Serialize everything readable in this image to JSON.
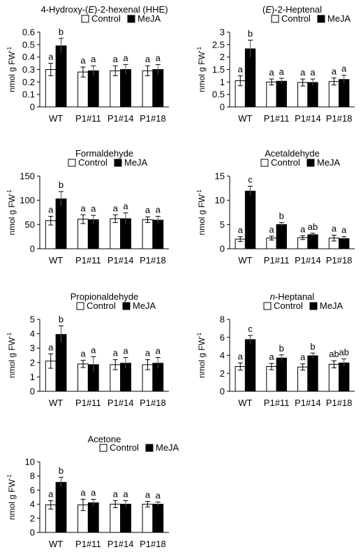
{
  "figure": {
    "ylabel": "nmol g FW",
    "ylabel_sup": "-1",
    "legend": [
      "Control",
      "MeJA"
    ],
    "colors": {
      "control": "#ffffff",
      "meja": "#000000",
      "axis": "#000000"
    }
  },
  "chart_data": [
    {
      "type": "bar",
      "title": "4-Hydroxy-(E)-2-hexenal (HHE)",
      "title_parts": [
        {
          "t": "4-Hydroxy-(",
          "i": false
        },
        {
          "t": "E",
          "i": true
        },
        {
          "t": ")-2-hexenal (HHE)",
          "i": false
        }
      ],
      "categories": [
        "WT",
        "P1#11",
        "P1#14",
        "P1#18"
      ],
      "ylabel": "nmol g FW-1",
      "ylim": [
        0,
        0.6
      ],
      "yticks": [
        "0",
        "0.1",
        "0.2",
        "0.3",
        "0.4",
        "0.5",
        "0.6"
      ],
      "series": [
        {
          "name": "Control",
          "values": [
            0.3,
            0.28,
            0.29,
            0.29
          ],
          "errors": [
            0.05,
            0.04,
            0.04,
            0.04
          ],
          "labels": [
            "a",
            "a",
            "a",
            "a"
          ]
        },
        {
          "name": "MeJA",
          "values": [
            0.49,
            0.29,
            0.3,
            0.3
          ],
          "errors": [
            0.06,
            0.04,
            0.04,
            0.04
          ],
          "labels": [
            "b",
            "a",
            "a",
            "a"
          ]
        }
      ]
    },
    {
      "type": "bar",
      "title": "(E)-2-Heptenal",
      "title_parts": [
        {
          "t": "(",
          "i": false
        },
        {
          "t": "E",
          "i": true
        },
        {
          "t": ")-2-Heptenal",
          "i": false
        }
      ],
      "categories": [
        "WT",
        "P1#11",
        "P1#14",
        "P1#18"
      ],
      "ylabel": "nmol g FW-1",
      "ylim": [
        0,
        3
      ],
      "yticks": [
        "0",
        "0.5",
        "1",
        "1.5",
        "2",
        "2.5",
        "3"
      ],
      "series": [
        {
          "name": "Control",
          "values": [
            1.05,
            1.0,
            0.98,
            1.02
          ],
          "errors": [
            0.2,
            0.12,
            0.14,
            0.14
          ],
          "labels": [
            "a",
            "a",
            "a",
            "a"
          ]
        },
        {
          "name": "MeJA",
          "values": [
            2.33,
            1.03,
            0.98,
            1.1
          ],
          "errors": [
            0.35,
            0.12,
            0.14,
            0.17
          ],
          "labels": [
            "b",
            "a",
            "a",
            "a"
          ]
        }
      ]
    },
    {
      "type": "bar",
      "title": "Formaldehyde",
      "title_parts": [
        {
          "t": "Formaldehyde",
          "i": false
        }
      ],
      "categories": [
        "WT",
        "P1#11",
        "P1#14",
        "P1#18"
      ],
      "ylabel": "nmol g FW-1",
      "ylim": [
        0,
        150
      ],
      "yticks": [
        "0",
        "50",
        "100",
        "150"
      ],
      "series": [
        {
          "name": "Control",
          "values": [
            58,
            61,
            62,
            60
          ],
          "errors": [
            9,
            9,
            8,
            6
          ],
          "labels": [
            "a",
            "a",
            "a",
            "a"
          ]
        },
        {
          "name": "MeJA",
          "values": [
            103,
            60,
            62,
            59
          ],
          "errors": [
            15,
            9,
            12,
            8
          ],
          "labels": [
            "b",
            "a",
            "a",
            "a"
          ]
        }
      ]
    },
    {
      "type": "bar",
      "title": "Acetaldehyde",
      "title_parts": [
        {
          "t": "Acetaldehyde",
          "i": false
        }
      ],
      "categories": [
        "WT",
        "P1#11",
        "P1#14",
        "P1#18"
      ],
      "ylabel": "nmol g FW-1",
      "ylim": [
        0,
        15
      ],
      "yticks": [
        "0",
        "5",
        "10",
        "15"
      ],
      "series": [
        {
          "name": "Control",
          "values": [
            2.0,
            2.2,
            2.3,
            2.2
          ],
          "errors": [
            0.5,
            0.4,
            0.4,
            0.6
          ],
          "labels": [
            "a",
            "a",
            "a",
            "a"
          ]
        },
        {
          "name": "MeJA",
          "values": [
            11.9,
            5.0,
            2.9,
            2.1
          ],
          "errors": [
            1.0,
            0.4,
            0.3,
            0.4
          ],
          "labels": [
            "c",
            "b",
            "ab",
            "a"
          ]
        }
      ]
    },
    {
      "type": "bar",
      "title": "Propionaldehyde",
      "title_parts": [
        {
          "t": "Propionaldehyde",
          "i": false
        }
      ],
      "categories": [
        "WT",
        "P1#11",
        "P1#14",
        "P1#18"
      ],
      "ylabel": "nmol g FW-1",
      "ylim": [
        0,
        5
      ],
      "yticks": [
        "0",
        "1",
        "2",
        "3",
        "4",
        "5"
      ],
      "series": [
        {
          "name": "Control",
          "values": [
            2.1,
            1.9,
            1.85,
            1.85
          ],
          "errors": [
            0.5,
            0.25,
            0.35,
            0.35
          ],
          "labels": [
            "a",
            "a",
            "a",
            "a"
          ]
        },
        {
          "name": "MeJA",
          "values": [
            3.95,
            1.85,
            1.95,
            1.95
          ],
          "errors": [
            0.6,
            0.55,
            0.4,
            0.4
          ],
          "labels": [
            "b",
            "a",
            "a",
            "a"
          ]
        }
      ]
    },
    {
      "type": "bar",
      "title": "n-Heptanal",
      "title_parts": [
        {
          "t": "n",
          "i": true
        },
        {
          "t": "-Heptanal",
          "i": false
        }
      ],
      "categories": [
        "WT",
        "P1#11",
        "P1#14",
        "P1#18"
      ],
      "ylabel": "nmol g FW-1",
      "ylim": [
        0,
        8
      ],
      "yticks": [
        "0",
        "2",
        "4",
        "6",
        "8"
      ],
      "series": [
        {
          "name": "Control",
          "values": [
            2.75,
            2.75,
            2.7,
            3.0
          ],
          "errors": [
            0.4,
            0.35,
            0.35,
            0.4
          ],
          "labels": [
            "a",
            "a",
            "a",
            "ab"
          ]
        },
        {
          "name": "MeJA",
          "values": [
            5.75,
            3.7,
            3.95,
            3.15
          ],
          "errors": [
            0.45,
            0.35,
            0.3,
            0.45
          ],
          "labels": [
            "c",
            "b",
            "b",
            "ab"
          ]
        }
      ]
    },
    {
      "type": "bar",
      "title": "Acetone",
      "title_parts": [
        {
          "t": "Acetone",
          "i": false
        }
      ],
      "categories": [
        "WT",
        "P1#11",
        "P1#14",
        "P1#18"
      ],
      "ylabel": "nmol g FW-1",
      "ylim": [
        0,
        10
      ],
      "yticks": [
        "0",
        "2",
        "4",
        "6",
        "8",
        "10"
      ],
      "series": [
        {
          "name": "Control",
          "values": [
            3.9,
            3.9,
            4.0,
            4.0
          ],
          "errors": [
            0.6,
            0.8,
            0.5,
            0.4
          ],
          "labels": [
            "a",
            "a",
            "a",
            "a"
          ]
        },
        {
          "name": "MeJA",
          "values": [
            7.1,
            4.2,
            4.0,
            4.0
          ],
          "errors": [
            0.7,
            0.5,
            0.5,
            0.3
          ],
          "labels": [
            "b",
            "a",
            "a",
            "a"
          ]
        }
      ]
    }
  ]
}
